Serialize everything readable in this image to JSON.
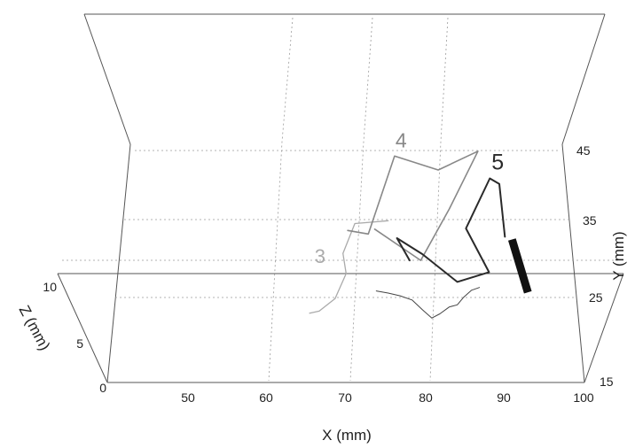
{
  "chart_data": {
    "type": "line",
    "view": "3d",
    "xlabel": "X (mm)",
    "ylabel": "Y (mm)",
    "zlabel": "Z (mm)",
    "x_ticks": [
      "50",
      "60",
      "70",
      "80",
      "90",
      "100"
    ],
    "y_ticks": [
      "15",
      "25",
      "35",
      "45"
    ],
    "z_ticks": [
      "0",
      "5",
      "10"
    ],
    "xlim": [
      40,
      100
    ],
    "ylim": [
      15,
      52
    ],
    "zlim": [
      0,
      10
    ],
    "grid": true,
    "series": [
      {
        "name": "3",
        "color": "#aaaaaa",
        "points": [
          [
            75.5,
            37.6
          ],
          [
            71.3,
            37.2
          ],
          [
            69.8,
            32.9
          ],
          [
            70.2,
            30.0
          ],
          [
            68.8,
            26.4
          ],
          [
            66.8,
            24.6
          ],
          [
            65.6,
            24.3
          ]
        ]
      },
      {
        "name": "4",
        "color": "#888888",
        "points": [
          [
            70.4,
            36.2
          ],
          [
            73.0,
            35.7
          ],
          [
            76.3,
            46.9
          ],
          [
            81.8,
            44.9
          ],
          [
            86.8,
            47.6
          ],
          [
            83.2,
            39.3
          ],
          [
            79.6,
            31.9
          ],
          [
            73.8,
            36.4
          ]
        ]
      },
      {
        "name": "5",
        "color": "#2a2a2a",
        "points": [
          [
            78.2,
            31.9
          ],
          [
            76.6,
            35.1
          ],
          [
            79.8,
            32.8
          ],
          [
            84.2,
            28.8
          ],
          [
            88.2,
            30.2
          ],
          [
            85.3,
            36.5
          ],
          [
            88.3,
            43.7
          ],
          [
            89.5,
            42.9
          ],
          [
            90.2,
            35.3
          ]
        ]
      }
    ],
    "contour": [
      [
        74,
        27.5
      ],
      [
        75.5,
        27.2
      ],
      [
        77,
        26.8
      ],
      [
        78.5,
        26.2
      ],
      [
        79.8,
        24.8
      ],
      [
        81,
        23.6
      ],
      [
        82,
        24.2
      ],
      [
        83.2,
        25.2
      ],
      [
        84.2,
        25.5
      ],
      [
        85,
        26.6
      ],
      [
        86,
        27.6
      ],
      [
        87,
        28.0
      ]
    ],
    "electrode": [
      [
        91.1,
        34.9
      ],
      [
        93.1,
        27.3
      ]
    ]
  }
}
